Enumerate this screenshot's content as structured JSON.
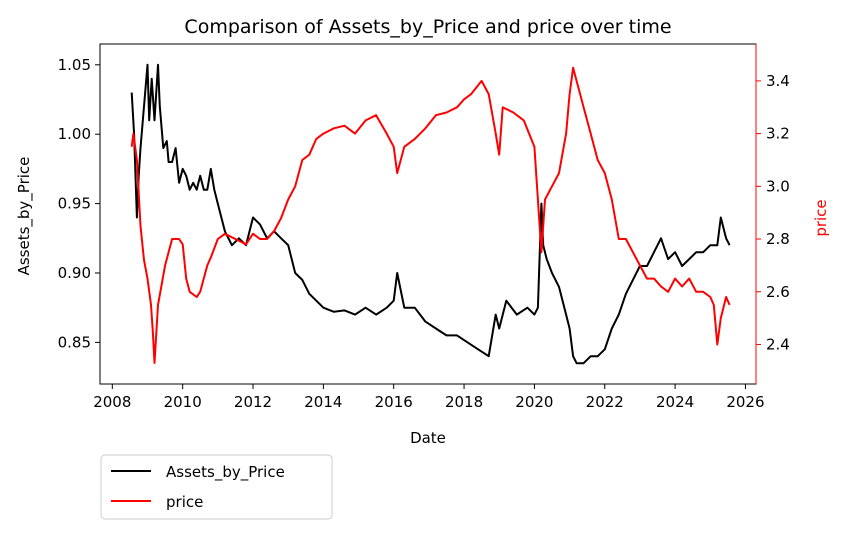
{
  "chart_data": {
    "type": "line",
    "title": "Comparison of Assets_by_Price and price over time",
    "xlabel": "Date",
    "ylabel_left": "Assets_by_Price",
    "ylabel_right": "price",
    "xlim": [
      2007.65,
      2026.3
    ],
    "ylim_left": [
      0.82,
      1.065
    ],
    "ylim_right": [
      2.25,
      3.54
    ],
    "x_ticks": [
      2008,
      2010,
      2012,
      2014,
      2016,
      2018,
      2020,
      2022,
      2024,
      2026
    ],
    "y_ticks_left": [
      "0.85",
      "0.90",
      "0.95",
      "1.00",
      "1.05"
    ],
    "y_ticks_right": [
      "2.4",
      "2.6",
      "2.8",
      "3.0",
      "3.2",
      "3.4"
    ],
    "grid": false,
    "legend_position": "below-left",
    "colors": {
      "left_axis": "#000000",
      "right_axis": "#ff0000",
      "assets_line": "#000000",
      "price_line": "#ff0000"
    },
    "series": [
      {
        "name": "Assets_by_Price",
        "axis": "left",
        "x": [
          2008.55,
          2008.62,
          2008.7,
          2008.75,
          2008.8,
          2008.9,
          2009.0,
          2009.05,
          2009.12,
          2009.2,
          2009.3,
          2009.35,
          2009.45,
          2009.55,
          2009.6,
          2009.7,
          2009.8,
          2009.9,
          2010.0,
          2010.1,
          2010.2,
          2010.3,
          2010.4,
          2010.5,
          2010.6,
          2010.7,
          2010.8,
          2010.9,
          2011.0,
          2011.2,
          2011.4,
          2011.6,
          2011.8,
          2012.0,
          2012.2,
          2012.4,
          2012.6,
          2012.8,
          2013.0,
          2013.2,
          2013.4,
          2013.6,
          2013.8,
          2014.0,
          2014.3,
          2014.6,
          2014.9,
          2015.2,
          2015.5,
          2015.8,
          2016.0,
          2016.1,
          2016.3,
          2016.6,
          2016.9,
          2017.2,
          2017.5,
          2017.8,
          2018.1,
          2018.4,
          2018.7,
          2018.9,
          2019.0,
          2019.2,
          2019.5,
          2019.8,
          2020.0,
          2020.1,
          2020.2,
          2020.25,
          2020.35,
          2020.5,
          2020.7,
          2020.9,
          2021.0,
          2021.1,
          2021.2,
          2021.4,
          2021.6,
          2021.8,
          2022.0,
          2022.2,
          2022.4,
          2022.6,
          2022.8,
          2023.0,
          2023.2,
          2023.4,
          2023.6,
          2023.8,
          2024.0,
          2024.2,
          2024.4,
          2024.6,
          2024.8,
          2025.0,
          2025.2,
          2025.3,
          2025.45,
          2025.55
        ],
        "values": [
          1.03,
          1.0,
          0.94,
          0.97,
          0.99,
          1.02,
          1.05,
          1.01,
          1.04,
          1.01,
          1.05,
          1.02,
          0.99,
          0.995,
          0.98,
          0.98,
          0.99,
          0.965,
          0.975,
          0.97,
          0.96,
          0.965,
          0.96,
          0.97,
          0.96,
          0.96,
          0.975,
          0.96,
          0.95,
          0.93,
          0.92,
          0.925,
          0.92,
          0.94,
          0.935,
          0.925,
          0.93,
          0.925,
          0.92,
          0.9,
          0.895,
          0.885,
          0.88,
          0.875,
          0.872,
          0.873,
          0.87,
          0.875,
          0.87,
          0.875,
          0.88,
          0.9,
          0.875,
          0.875,
          0.865,
          0.86,
          0.855,
          0.855,
          0.85,
          0.845,
          0.84,
          0.87,
          0.86,
          0.88,
          0.87,
          0.875,
          0.87,
          0.875,
          0.95,
          0.92,
          0.91,
          0.9,
          0.89,
          0.87,
          0.86,
          0.84,
          0.835,
          0.835,
          0.84,
          0.84,
          0.845,
          0.86,
          0.87,
          0.885,
          0.895,
          0.905,
          0.905,
          0.915,
          0.925,
          0.91,
          0.915,
          0.905,
          0.91,
          0.915,
          0.915,
          0.92,
          0.92,
          0.94,
          0.925,
          0.92
        ]
      },
      {
        "name": "price",
        "axis": "right",
        "x": [
          2008.55,
          2008.6,
          2008.7,
          2008.8,
          2008.9,
          2009.0,
          2009.1,
          2009.15,
          2009.2,
          2009.3,
          2009.5,
          2009.7,
          2009.9,
          2010.0,
          2010.1,
          2010.2,
          2010.4,
          2010.5,
          2010.7,
          2010.8,
          2011.0,
          2011.2,
          2011.5,
          2011.8,
          2012.0,
          2012.2,
          2012.4,
          2012.6,
          2012.8,
          2013.0,
          2013.2,
          2013.4,
          2013.6,
          2013.8,
          2014.0,
          2014.3,
          2014.6,
          2014.9,
          2015.2,
          2015.5,
          2015.8,
          2016.0,
          2016.1,
          2016.3,
          2016.6,
          2016.9,
          2017.2,
          2017.5,
          2017.8,
          2018.0,
          2018.2,
          2018.5,
          2018.7,
          2018.9,
          2019.0,
          2019.1,
          2019.4,
          2019.7,
          2020.0,
          2020.2,
          2020.3,
          2020.5,
          2020.7,
          2020.9,
          2021.0,
          2021.1,
          2021.2,
          2021.4,
          2021.6,
          2021.8,
          2022.0,
          2022.2,
          2022.4,
          2022.6,
          2022.8,
          2023.0,
          2023.2,
          2023.4,
          2023.6,
          2023.8,
          2024.0,
          2024.2,
          2024.4,
          2024.6,
          2024.8,
          2025.0,
          2025.1,
          2025.2,
          2025.3,
          2025.45,
          2025.55
        ],
        "values": [
          3.15,
          3.2,
          3.1,
          2.85,
          2.72,
          2.65,
          2.55,
          2.45,
          2.33,
          2.55,
          2.7,
          2.8,
          2.8,
          2.78,
          2.65,
          2.6,
          2.58,
          2.6,
          2.7,
          2.73,
          2.8,
          2.82,
          2.8,
          2.78,
          2.82,
          2.8,
          2.8,
          2.83,
          2.88,
          2.95,
          3.0,
          3.1,
          3.12,
          3.18,
          3.2,
          3.22,
          3.23,
          3.2,
          3.25,
          3.27,
          3.2,
          3.15,
          3.05,
          3.15,
          3.18,
          3.22,
          3.27,
          3.28,
          3.3,
          3.33,
          3.35,
          3.4,
          3.35,
          3.2,
          3.12,
          3.3,
          3.28,
          3.25,
          3.15,
          2.75,
          2.95,
          3.0,
          3.05,
          3.2,
          3.35,
          3.45,
          3.4,
          3.3,
          3.2,
          3.1,
          3.05,
          2.95,
          2.8,
          2.8,
          2.75,
          2.7,
          2.65,
          2.65,
          2.62,
          2.6,
          2.65,
          2.62,
          2.65,
          2.6,
          2.6,
          2.58,
          2.55,
          2.4,
          2.5,
          2.58,
          2.55
        ]
      }
    ]
  }
}
